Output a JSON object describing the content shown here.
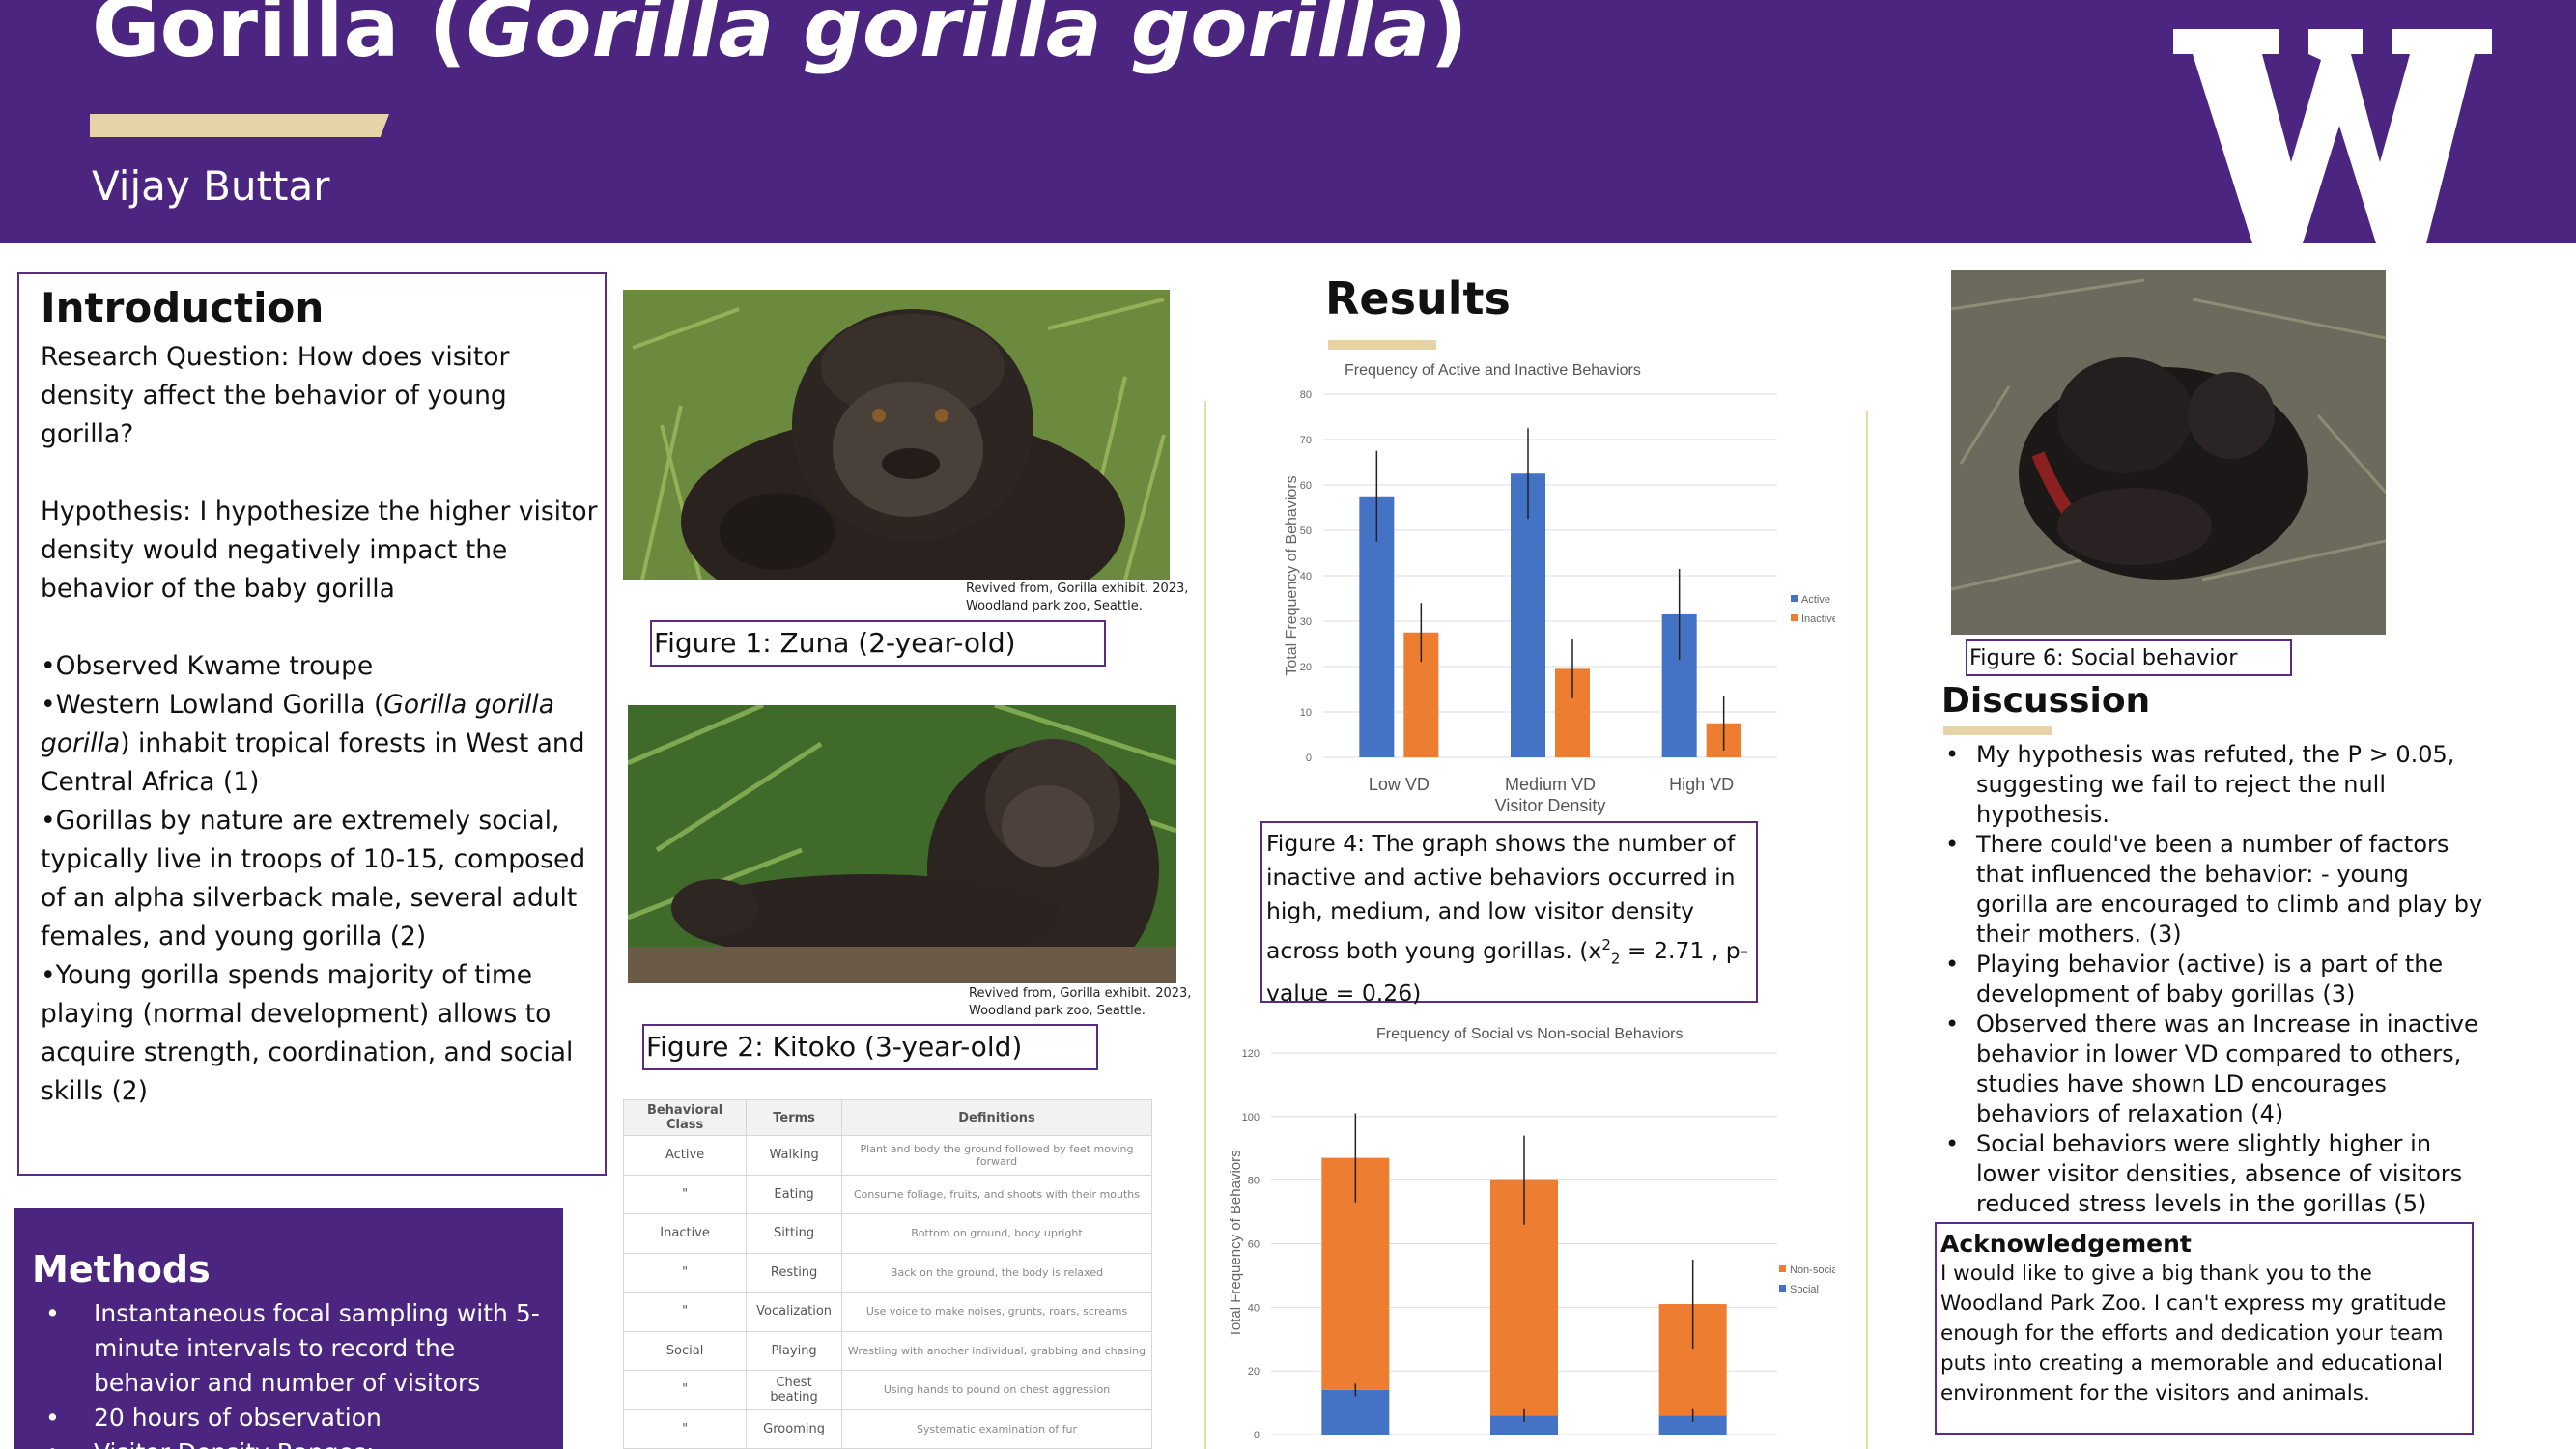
{
  "header": {
    "title_plain": "Gorilla (",
    "title_italic": "Gorilla gorilla gorilla",
    "title_close": ")",
    "author": "Vijay Buttar",
    "logo_letter": "W",
    "bg_color": "#4b2580",
    "accent_color": "#e6d4a8"
  },
  "introduction": {
    "title": "Introduction",
    "research_question": "Research Question: How does visitor density affect the behavior of young gorilla?",
    "hypothesis": "Hypothesis: I hypothesize the higher visitor density would negatively impact the behavior of the baby gorilla",
    "bullet1": "•Observed Kwame troupe",
    "bullet2_a": "•Western Lowland Gorilla (",
    "bullet2_italic": "Gorilla gorilla gorilla",
    "bullet2_b": ") inhabit tropical forests in West and Central Africa (1)",
    "bullet3": "•Gorillas by nature are extremely social, typically live in troops of 10-15, composed of an alpha silverback male, several adult females, and young gorilla (2)",
    "bullet4": "•Young gorilla spends majority of time playing (normal development) allows to acquire strength, coordination, and social skills (2)"
  },
  "methods": {
    "title": "Methods",
    "items": [
      "Instantaneous focal sampling with 5-minute intervals to record the behavior and number of visitors",
      "20 hours of observation",
      "Visitor Density Ranges:"
    ]
  },
  "figures": {
    "fig1_source": "Revived from, Gorilla exhibit. 2023, Woodland park zoo, Seattle.",
    "fig1_caption": "Figure 1: Zuna (2-year-old)",
    "fig2_source": "Revived from, Gorilla exhibit. 2023, Woodland park zoo, Seattle.",
    "fig2_caption": "Figure 2: Kitoko (3-year-old)",
    "fig6_caption": "Figure 6: Social behavior"
  },
  "table": {
    "headers": [
      "Behavioral Class",
      "Terms",
      "Definitions"
    ],
    "rows": [
      [
        "Active",
        "Walking",
        "Plant and body the ground followed by feet moving forward"
      ],
      [
        "\"",
        "Eating",
        "Consume foliage, fruits, and shoots with their mouths"
      ],
      [
        "Inactive",
        "Sitting",
        "Bottom on ground, body upright"
      ],
      [
        "\"",
        "Resting",
        "Back on the ground, the body is relaxed"
      ],
      [
        "\"",
        "Vocalization",
        "Use voice to make noises, grunts, roars, screams"
      ],
      [
        "Social",
        "Playing",
        "Wrestling with another individual, grabbing and chasing"
      ],
      [
        "\"",
        "Chest beating",
        "Using hands to pound on chest aggression"
      ],
      [
        "\"",
        "Grooming",
        "Systematic examination of fur"
      ]
    ]
  },
  "results": {
    "title": "Results",
    "fig4_caption_a": "Figure 4:  The graph shows the number of inactive and active behaviors occurred in high, medium, and low visitor density across both young gorillas. (x",
    "fig4_sup": "2",
    "fig4_sub": "2",
    "fig4_caption_b": " = 2.71 ,  p-value = 0.26)"
  },
  "chart_data": [
    {
      "type": "bar",
      "title": "Frequency of Active and Inactive Behaviors",
      "xlabel": "Visitor Density",
      "ylabel": "Total Frequency of Behaviors",
      "categories": [
        "Low VD",
        "Medium VD",
        "High VD"
      ],
      "ylim": [
        0,
        80
      ],
      "yticks": [
        0,
        10,
        20,
        30,
        40,
        50,
        60,
        70,
        80
      ],
      "grid": true,
      "legend": "right",
      "stacked": false,
      "series": [
        {
          "name": "Active",
          "color": "#4472c4",
          "values": [
            57.5,
            62.5,
            31.5
          ],
          "error": [
            10,
            10,
            10
          ]
        },
        {
          "name": "Inactive",
          "color": "#ed7d31",
          "values": [
            27.5,
            19.5,
            7.5
          ],
          "error": [
            6.5,
            6.5,
            6
          ]
        }
      ]
    },
    {
      "type": "bar",
      "title": "Frequency of Social vs Non-social Behaviors",
      "xlabel": "",
      "ylabel": "Total Frequency of Behaviors",
      "categories": [
        "",
        "",
        ""
      ],
      "ylim": [
        0,
        120
      ],
      "yticks": [
        0,
        20,
        40,
        60,
        80,
        100,
        120
      ],
      "grid": true,
      "legend": "right",
      "stacked": true,
      "series": [
        {
          "name": "Social",
          "color": "#4472c4",
          "values": [
            14,
            6,
            6
          ]
        },
        {
          "name": "Non-social",
          "color": "#ed7d31",
          "values": [
            73,
            74,
            35
          ]
        }
      ],
      "error_total": [
        14,
        14,
        14
      ]
    }
  ],
  "discussion": {
    "title": "Discussion",
    "items": [
      "My hypothesis was refuted, the P > 0.05, suggesting we fail to reject the null hypothesis.",
      "There could've been a number of factors that influenced the behavior: - young gorilla are encouraged to climb and play by their mothers. (3)",
      "Playing behavior (active) is a part of the development of baby gorillas (3)",
      "Observed there was an Increase in inactive behavior in lower VD compared to others, studies have shown LD encourages behaviors of relaxation (4)",
      "Social behaviors were slightly higher in lower visitor densities, absence of visitors reduced stress levels in the gorillas (5)"
    ]
  },
  "acknowledgement": {
    "title": "Acknowledgement",
    "text": "I would like to give a big thank you to the Woodland Park Zoo. I can't express my gratitude enough for the efforts and dedication your team puts into creating a memorable and educational environment for the visitors and animals."
  }
}
